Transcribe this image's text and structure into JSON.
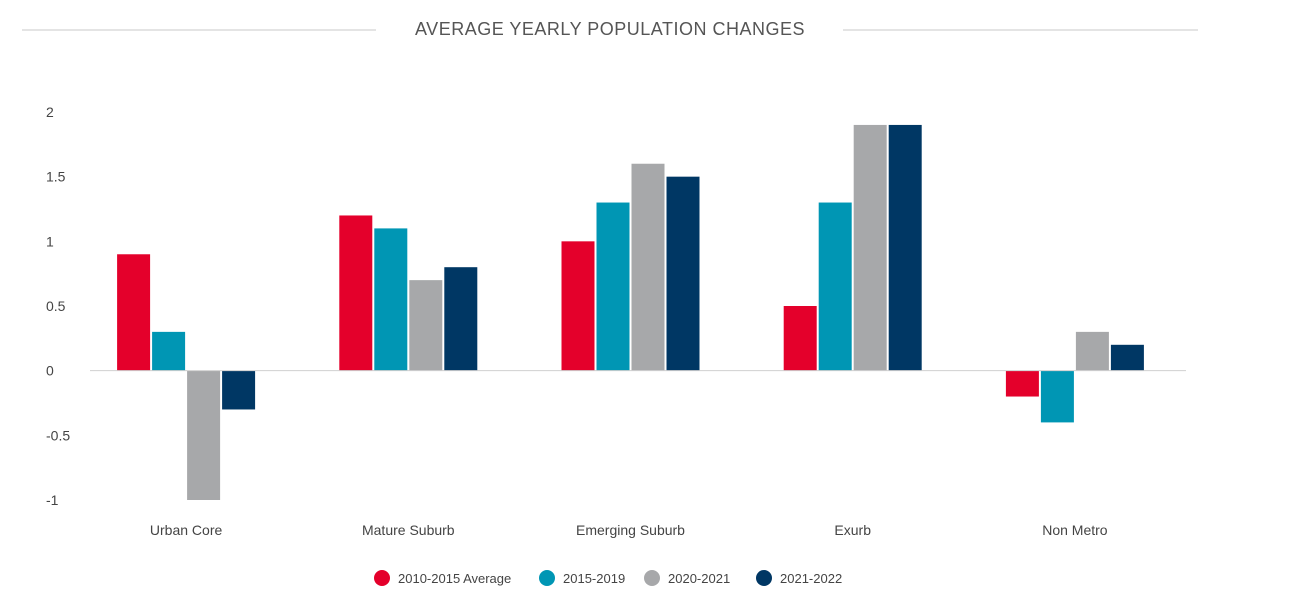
{
  "chart_data": {
    "type": "bar",
    "title": "AVERAGE YEARLY POPULATION CHANGES",
    "xlabel": "",
    "ylabel": "",
    "ylim": [
      -1,
      2
    ],
    "yticks": [
      "2",
      "1.5",
      "1",
      "0.5",
      "0",
      "-0.5",
      "-1"
    ],
    "ytick_values": [
      2,
      1.5,
      1,
      0.5,
      0,
      -0.5,
      -1
    ],
    "categories": [
      "Urban Core",
      "Mature Suburb",
      "Emerging Suburb",
      "Exurb",
      "Non Metro"
    ],
    "series": [
      {
        "name": "2010-2015 Average",
        "color": "#e4002b",
        "values": [
          0.9,
          1.2,
          1.0,
          0.5,
          -0.2
        ]
      },
      {
        "name": "2015-2019",
        "color": "#0096b4",
        "values": [
          0.3,
          1.1,
          1.3,
          1.3,
          -0.4
        ]
      },
      {
        "name": "2020-2021",
        "color": "#a7a8aa",
        "values": [
          -1.0,
          0.7,
          1.6,
          1.9,
          0.3
        ]
      },
      {
        "name": "2021-2022",
        "color": "#003764",
        "values": [
          -0.3,
          0.8,
          1.5,
          1.9,
          0.2
        ]
      }
    ],
    "grid": false,
    "legend_position": "bottom-center"
  }
}
